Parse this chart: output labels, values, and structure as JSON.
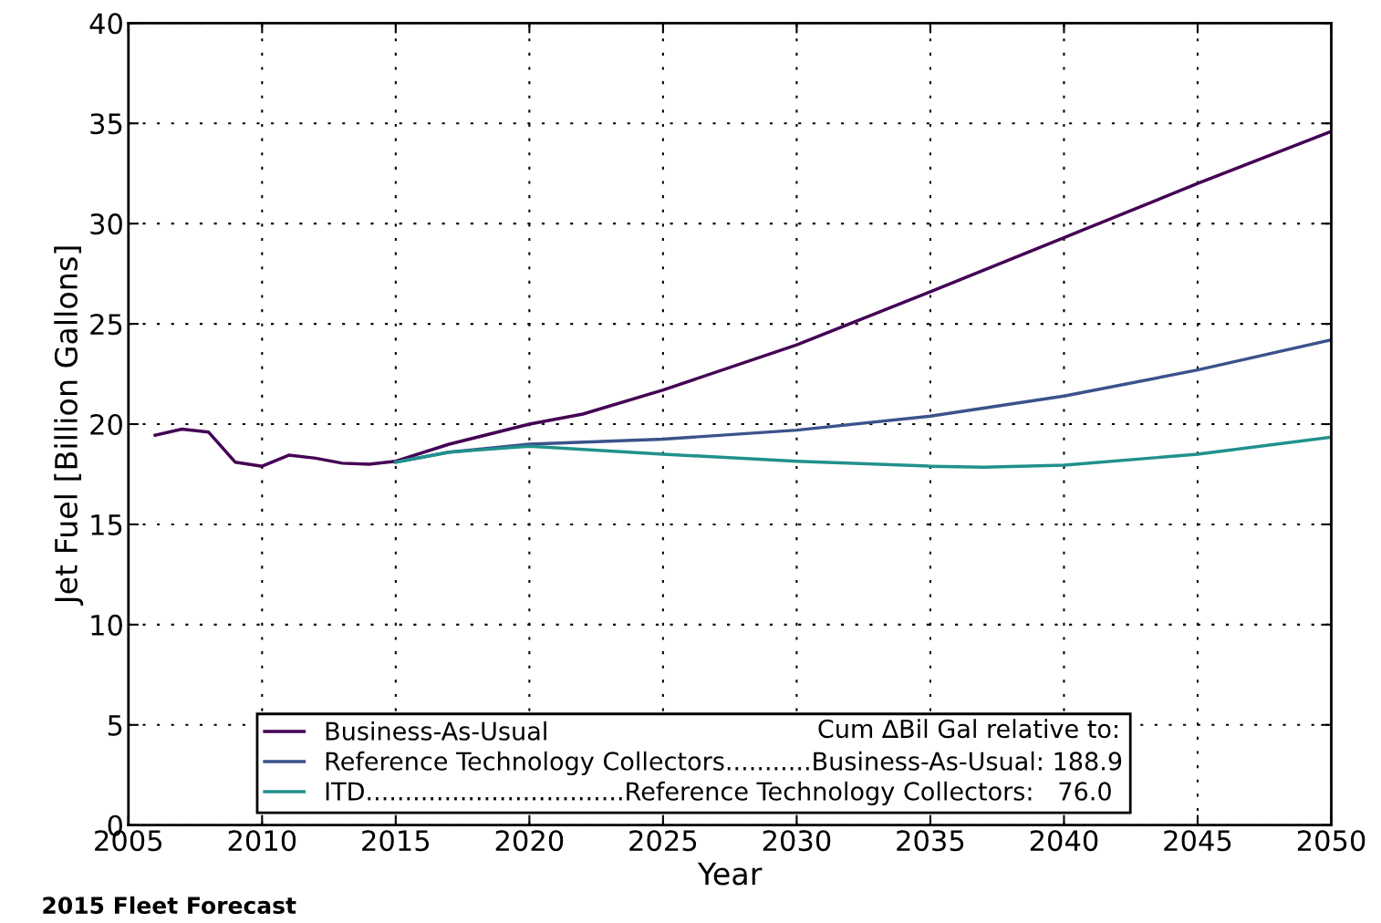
{
  "chart_data": {
    "type": "line",
    "xlabel": "Year",
    "ylabel": "Jet Fuel [Billion Gallons]",
    "xlim": [
      2005,
      2050
    ],
    "xticks": [
      2005,
      2010,
      2015,
      2020,
      2025,
      2030,
      2035,
      2040,
      2045,
      2050
    ],
    "ylim": [
      0,
      40
    ],
    "yticks": [
      0,
      5,
      10,
      15,
      20,
      25,
      30,
      35,
      40
    ],
    "grid": true,
    "legend": "bottom",
    "line_style": "solid",
    "series": [
      {
        "name": "Business-As-Usual",
        "color": "#440154",
        "x": [
          2006,
          2007,
          2008,
          2009,
          2010,
          2011,
          2012,
          2013,
          2014,
          2015,
          2017,
          2020,
          2022,
          2025,
          2030,
          2035,
          2040,
          2045,
          2050
        ],
        "values": [
          19.45,
          19.75,
          19.6,
          18.1,
          17.9,
          18.45,
          18.3,
          18.05,
          18.0,
          18.15,
          19.0,
          20.0,
          20.5,
          21.7,
          23.95,
          26.6,
          29.3,
          32.0,
          34.6
        ]
      },
      {
        "name": "Reference Technology Collectors...........Business-As-Usual: 188.9",
        "color": "#3b528b",
        "x": [
          2015,
          2017,
          2020,
          2025,
          2030,
          2035,
          2040,
          2045,
          2050
        ],
        "values": [
          18.1,
          18.6,
          19.0,
          19.25,
          19.7,
          20.4,
          21.4,
          22.7,
          24.2
        ]
      },
      {
        "name": "ITD.................................Reference Technology Collectors:   76.0",
        "color": "#21918c",
        "x": [
          2015,
          2017,
          2020,
          2025,
          2030,
          2035,
          2037,
          2040,
          2045,
          2050
        ],
        "values": [
          18.1,
          18.6,
          18.9,
          18.5,
          18.15,
          17.9,
          17.85,
          17.95,
          18.5,
          19.35
        ]
      }
    ],
    "annotations": [
      "Cum ∆Bil Gal relative to:",
      "2015 Fleet Forecast"
    ]
  }
}
